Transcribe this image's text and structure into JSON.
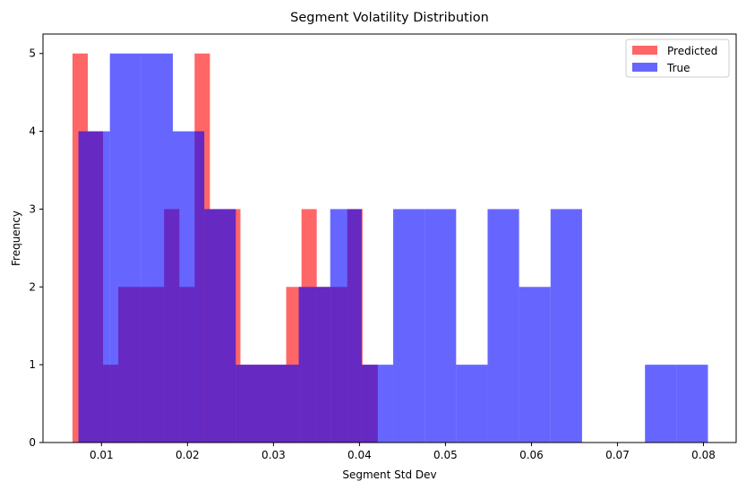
{
  "chart_data": {
    "type": "histogram",
    "title": "Segment Volatility Distribution",
    "xlabel": "Segment Std Dev",
    "ylabel": "Frequency",
    "xlim": [
      0.0032,
      0.0838
    ],
    "ylim": [
      0,
      5.25
    ],
    "x_ticks": [
      0.01,
      0.02,
      0.03,
      0.04,
      0.05,
      0.06,
      0.07,
      0.08
    ],
    "x_tick_labels": [
      "0.01",
      "0.02",
      "0.03",
      "0.04",
      "0.05",
      "0.06",
      "0.07",
      "0.08"
    ],
    "y_ticks": [
      0,
      1,
      2,
      3,
      4,
      5
    ],
    "y_tick_labels": [
      "0",
      "1",
      "2",
      "3",
      "4",
      "5"
    ],
    "grid": false,
    "legend_position": "top-right",
    "series": [
      {
        "name": "Predicted",
        "color": "#ff0000",
        "alpha": 0.6,
        "bin_edges": [
          0.00663,
          0.00841,
          0.01018,
          0.01196,
          0.01373,
          0.01551,
          0.01728,
          0.01906,
          0.02083,
          0.02261,
          0.02438,
          0.02616,
          0.02793,
          0.02971,
          0.03148,
          0.03326,
          0.03503,
          0.03681,
          0.03858,
          0.04036,
          0.04213
        ],
        "counts": [
          5,
          4,
          1,
          2,
          2,
          2,
          3,
          2,
          5,
          3,
          3,
          1,
          1,
          1,
          2,
          3,
          2,
          2,
          3,
          1
        ]
      },
      {
        "name": "True",
        "color": "#0000ff",
        "alpha": 0.6,
        "bin_edges": [
          0.00732,
          0.01098,
          0.01464,
          0.0183,
          0.02196,
          0.02562,
          0.02928,
          0.03294,
          0.0366,
          0.04026,
          0.04392,
          0.04758,
          0.05124,
          0.0549,
          0.05856,
          0.06222,
          0.06588,
          0.06954,
          0.0732,
          0.07686,
          0.08052
        ],
        "counts": [
          4,
          5,
          5,
          4,
          3,
          1,
          1,
          2,
          3,
          1,
          3,
          3,
          1,
          3,
          2,
          3,
          0,
          0,
          1,
          1
        ]
      }
    ]
  }
}
